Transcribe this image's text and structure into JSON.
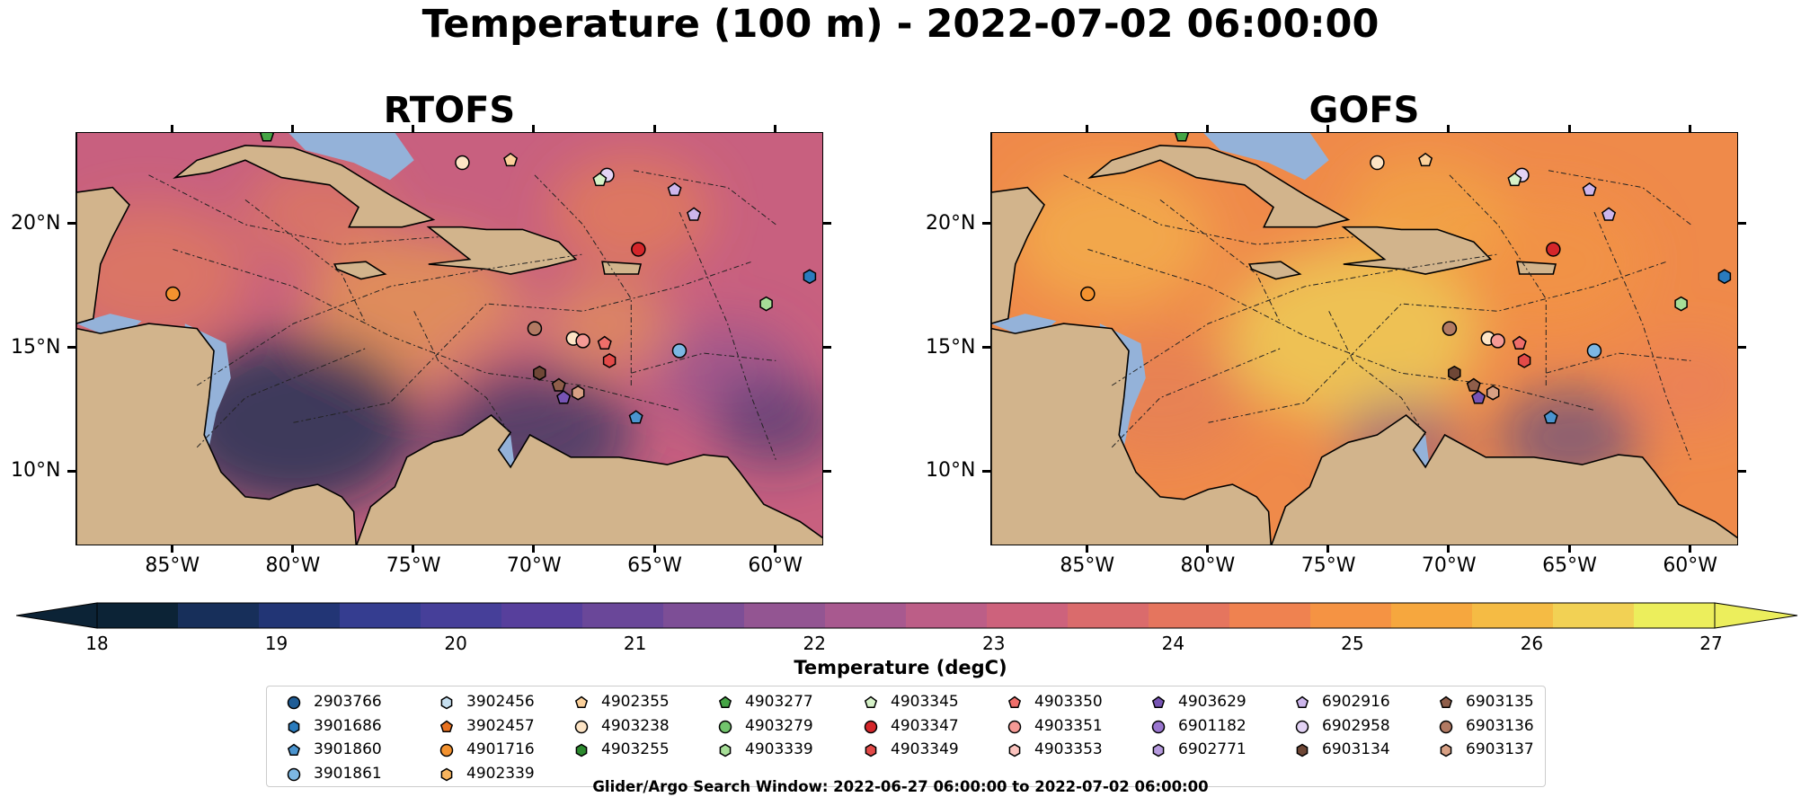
{
  "title": "Temperature (100 m) - 2022-07-02 06:00:00",
  "panels": [
    {
      "title": "RTOFS",
      "style": "rtofs"
    },
    {
      "title": "GOFS",
      "style": "gofs"
    }
  ],
  "lat_ticks": [
    {
      "value": 20,
      "label": "20°N"
    },
    {
      "value": 15,
      "label": "15°N"
    },
    {
      "value": 10,
      "label": "10°N"
    }
  ],
  "lon_ticks": [
    {
      "value": -85,
      "label": "85°W"
    },
    {
      "value": -80,
      "label": "80°W"
    },
    {
      "value": -75,
      "label": "75°W"
    },
    {
      "value": -70,
      "label": "70°W"
    },
    {
      "value": -65,
      "label": "65°W"
    },
    {
      "value": -60,
      "label": "60°W"
    }
  ],
  "extent": {
    "lon": [
      -89,
      -58
    ],
    "lat": [
      7,
      23.7
    ]
  },
  "colorbar": {
    "label": "Temperature (degC)",
    "min": 18,
    "max": 27,
    "step": 0.5,
    "ticks": [
      "18",
      "19",
      "20",
      "21",
      "22",
      "23",
      "24",
      "25",
      "26",
      "27"
    ],
    "colors": [
      "#0c2336",
      "#172f5a",
      "#223575",
      "#353d90",
      "#463f99",
      "#573f9c",
      "#6a4799",
      "#7d4e96",
      "#935592",
      "#a8598f",
      "#bc5e87",
      "#cd627c",
      "#da6b6c",
      "#e5755e",
      "#ef8250",
      "#f59343",
      "#f6a73e",
      "#f5bb44",
      "#f2d154",
      "#ecee5c"
    ]
  },
  "land_color": "#d2b48c",
  "shelf_color": "#94b2d9",
  "legend": {
    "title": "Glider/Argo Search Window: 2022-06-27 06:00:00 to 2022-07-02 06:00:00",
    "columns": [
      [
        {
          "label": "2903766",
          "marker": "circle",
          "color": "#1f5d96"
        },
        {
          "label": "3901686",
          "marker": "hexagon",
          "color": "#2a7bbd"
        },
        {
          "label": "3901860",
          "marker": "pentagon",
          "color": "#4a94cf"
        },
        {
          "label": "3901861",
          "marker": "circle",
          "color": "#7cb7e3"
        }
      ],
      [
        {
          "label": "3902456",
          "marker": "hexagon",
          "color": "#c6dfef"
        },
        {
          "label": "3902457",
          "marker": "pentagon",
          "color": "#e8711f"
        },
        {
          "label": "4901716",
          "marker": "circle",
          "color": "#f3922f"
        },
        {
          "label": "4902339",
          "marker": "hexagon",
          "color": "#f7b45e"
        }
      ],
      [
        {
          "label": "4902355",
          "marker": "pentagon",
          "color": "#fbd09a"
        },
        {
          "label": "4903238",
          "marker": "circle",
          "color": "#fde4c5"
        },
        {
          "label": "4903255",
          "marker": "hexagon",
          "color": "#2c8a2e"
        }
      ],
      [
        {
          "label": "4903277",
          "marker": "pentagon",
          "color": "#46a546"
        },
        {
          "label": "4903279",
          "marker": "circle",
          "color": "#72c56d"
        },
        {
          "label": "4903339",
          "marker": "hexagon",
          "color": "#a6de97"
        }
      ],
      [
        {
          "label": "4903345",
          "marker": "pentagon",
          "color": "#d6f2c8"
        },
        {
          "label": "4903347",
          "marker": "circle",
          "color": "#d5262a"
        },
        {
          "label": "4903349",
          "marker": "hexagon",
          "color": "#e34a48"
        }
      ],
      [
        {
          "label": "4903350",
          "marker": "pentagon",
          "color": "#ee6e6a"
        },
        {
          "label": "4903351",
          "marker": "circle",
          "color": "#f59a95"
        },
        {
          "label": "4903353",
          "marker": "hexagon",
          "color": "#fbc3be"
        }
      ],
      [
        {
          "label": "4903629",
          "marker": "pentagon",
          "color": "#7754b4"
        },
        {
          "label": "6901182",
          "marker": "circle",
          "color": "#9a76cf"
        },
        {
          "label": "6902771",
          "marker": "hexagon",
          "color": "#b69ade"
        }
      ],
      [
        {
          "label": "6902916",
          "marker": "pentagon",
          "color": "#cdb6ec"
        },
        {
          "label": "6902958",
          "marker": "circle",
          "color": "#e3d3f5"
        },
        {
          "label": "6903134",
          "marker": "hexagon",
          "color": "#6f4736"
        }
      ],
      [
        {
          "label": "6903135",
          "marker": "pentagon",
          "color": "#8f5e4a"
        },
        {
          "label": "6903136",
          "marker": "circle",
          "color": "#b27a63"
        },
        {
          "label": "6903137",
          "marker": "hexagon",
          "color": "#d8a084"
        }
      ]
    ]
  },
  "floats": [
    {
      "id": "4903277",
      "lon": -81.1,
      "lat": 23.6
    },
    {
      "id": "4903238",
      "lon": -73.0,
      "lat": 22.5
    },
    {
      "id": "4902355",
      "lon": -71.0,
      "lat": 22.6
    },
    {
      "id": "6902958",
      "lon": -67.0,
      "lat": 22.0
    },
    {
      "id": "4903345",
      "lon": -67.3,
      "lat": 21.8
    },
    {
      "id": "6902916",
      "lon": -64.2,
      "lat": 21.4
    },
    {
      "id": "6902916",
      "lon": -63.4,
      "lat": 20.4
    },
    {
      "id": "4903347",
      "lon": -65.7,
      "lat": 19.0
    },
    {
      "id": "3901686",
      "lon": -58.6,
      "lat": 17.9
    },
    {
      "id": "4901716",
      "lon": -85.0,
      "lat": 17.2
    },
    {
      "id": "4903339",
      "lon": -60.4,
      "lat": 16.8
    },
    {
      "id": "6903136",
      "lon": -70.0,
      "lat": 15.8
    },
    {
      "id": "4903238",
      "lon": -68.4,
      "lat": 15.4
    },
    {
      "id": "4903351",
      "lon": -68.0,
      "lat": 15.3
    },
    {
      "id": "4903350",
      "lon": -67.1,
      "lat": 15.2
    },
    {
      "id": "3901861",
      "lon": -64.0,
      "lat": 14.9
    },
    {
      "id": "4903349",
      "lon": -66.9,
      "lat": 14.5
    },
    {
      "id": "6903134",
      "lon": -69.8,
      "lat": 14.0
    },
    {
      "id": "6903135",
      "lon": -69.0,
      "lat": 13.5
    },
    {
      "id": "6903137",
      "lon": -68.2,
      "lat": 13.2
    },
    {
      "id": "4903629",
      "lon": -68.8,
      "lat": 13.0
    },
    {
      "id": "3901860",
      "lon": -65.8,
      "lat": 12.2
    }
  ]
}
